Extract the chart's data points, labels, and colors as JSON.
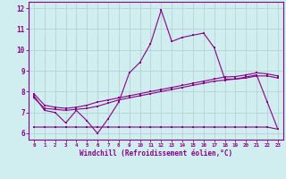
{
  "xlabel": "Windchill (Refroidissement éolien,°C)",
  "xlim": [
    -0.5,
    23.5
  ],
  "ylim": [
    5.7,
    12.3
  ],
  "xticks": [
    0,
    1,
    2,
    3,
    4,
    5,
    6,
    7,
    8,
    9,
    10,
    11,
    12,
    13,
    14,
    15,
    16,
    17,
    18,
    19,
    20,
    21,
    22,
    23
  ],
  "yticks": [
    6,
    7,
    8,
    9,
    10,
    11,
    12
  ],
  "bg_color": "#d0eef0",
  "grid_color": "#b0ccd0",
  "line_color": "#880088",
  "line1_y": [
    7.8,
    7.1,
    7.0,
    6.5,
    7.1,
    6.6,
    6.0,
    6.7,
    7.5,
    8.9,
    9.4,
    10.3,
    11.9,
    10.4,
    10.6,
    10.7,
    10.8,
    10.1,
    8.6,
    8.6,
    8.7,
    8.8,
    7.5,
    6.2
  ],
  "line2_y": [
    7.7,
    7.2,
    7.15,
    7.1,
    7.15,
    7.2,
    7.3,
    7.45,
    7.6,
    7.7,
    7.8,
    7.9,
    8.0,
    8.1,
    8.2,
    8.3,
    8.4,
    8.5,
    8.55,
    8.6,
    8.65,
    8.75,
    8.75,
    8.65
  ],
  "line3_y": [
    7.9,
    7.35,
    7.25,
    7.2,
    7.25,
    7.35,
    7.5,
    7.6,
    7.7,
    7.8,
    7.9,
    8.0,
    8.1,
    8.2,
    8.3,
    8.4,
    8.5,
    8.6,
    8.7,
    8.72,
    8.8,
    8.9,
    8.85,
    8.75
  ],
  "line4_y": [
    6.3,
    6.3,
    6.3,
    6.3,
    6.3,
    6.3,
    6.3,
    6.3,
    6.3,
    6.3,
    6.3,
    6.3,
    6.3,
    6.3,
    6.3,
    6.3,
    6.3,
    6.3,
    6.3,
    6.3,
    6.3,
    6.3,
    6.3,
    6.2
  ],
  "marker_size": 2.0,
  "line_width": 0.8
}
